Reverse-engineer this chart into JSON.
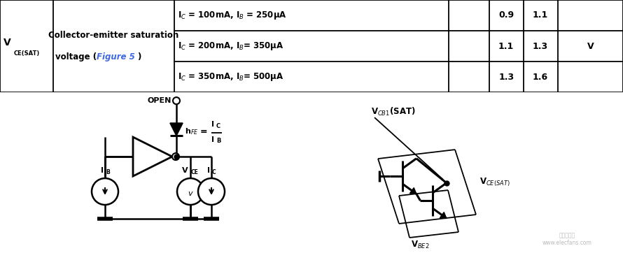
{
  "bg_color": "#ffffff",
  "border_color": "#000000",
  "text_color": "#000000",
  "figure5_color": "#4169e1",
  "table": {
    "cols": [
      0.0,
      0.085,
      0.28,
      0.72,
      0.785,
      0.84,
      0.895,
      1.0
    ],
    "rows": [
      1.0,
      0.667,
      0.333,
      0.0
    ],
    "conditions": [
      "I$_C$ = 100mA, I$_B$ = 250μA",
      "I$_C$ = 200mA, I$_B$= 350μA",
      "I$_C$ = 350mA, I$_B$= 500μA"
    ],
    "mins": [
      "0.9",
      "1.1",
      "1.3"
    ],
    "maxs": [
      "1.1",
      "1.3",
      "1.6"
    ],
    "unit": "V"
  }
}
